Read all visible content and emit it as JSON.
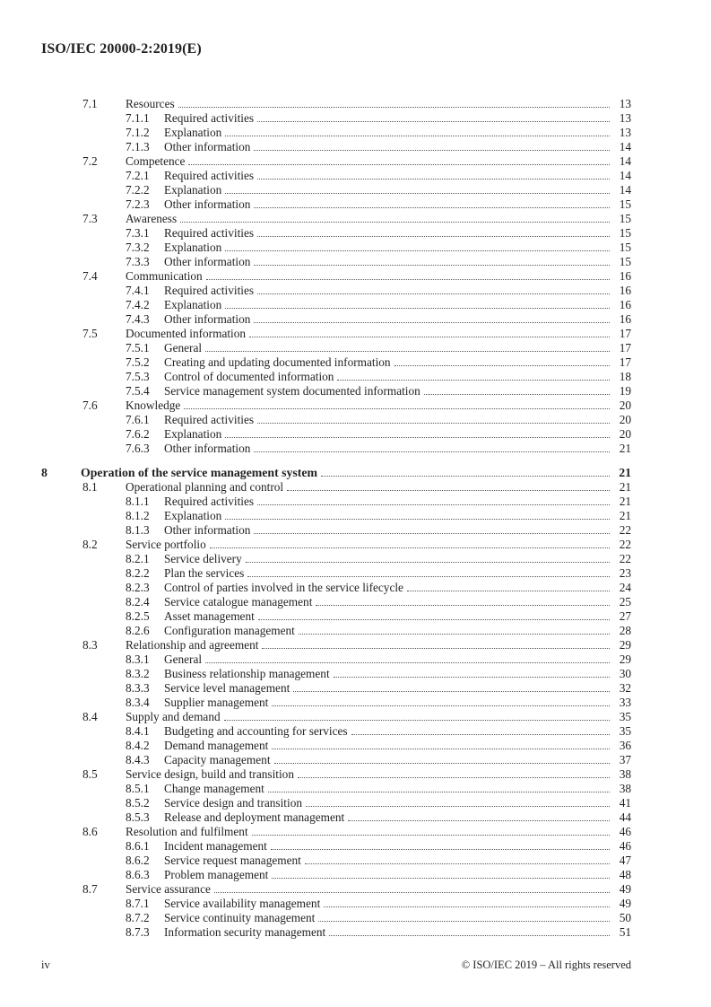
{
  "header": {
    "title": "ISO/IEC 20000-2:2019(E)"
  },
  "footer": {
    "page_label": "iv",
    "copyright": "© ISO/IEC 2019 – All rights reserved"
  },
  "toc": {
    "entries": [
      {
        "level": 2,
        "num": "7.1",
        "title": "Resources",
        "page": "13"
      },
      {
        "level": 3,
        "num": "7.1.1",
        "title": "Required activities",
        "page": "13"
      },
      {
        "level": 3,
        "num": "7.1.2",
        "title": "Explanation",
        "page": "13"
      },
      {
        "level": 3,
        "num": "7.1.3",
        "title": "Other information",
        "page": "14"
      },
      {
        "level": 2,
        "num": "7.2",
        "title": "Competence",
        "page": "14"
      },
      {
        "level": 3,
        "num": "7.2.1",
        "title": "Required activities",
        "page": "14"
      },
      {
        "level": 3,
        "num": "7.2.2",
        "title": "Explanation",
        "page": "14"
      },
      {
        "level": 3,
        "num": "7.2.3",
        "title": "Other information",
        "page": "15"
      },
      {
        "level": 2,
        "num": "7.3",
        "title": "Awareness",
        "page": "15"
      },
      {
        "level": 3,
        "num": "7.3.1",
        "title": "Required activities",
        "page": "15"
      },
      {
        "level": 3,
        "num": "7.3.2",
        "title": "Explanation",
        "page": "15"
      },
      {
        "level": 3,
        "num": "7.3.3",
        "title": "Other information",
        "page": "15"
      },
      {
        "level": 2,
        "num": "7.4",
        "title": "Communication",
        "page": "16"
      },
      {
        "level": 3,
        "num": "7.4.1",
        "title": "Required activities",
        "page": "16"
      },
      {
        "level": 3,
        "num": "7.4.2",
        "title": "Explanation",
        "page": "16"
      },
      {
        "level": 3,
        "num": "7.4.3",
        "title": "Other information",
        "page": "16"
      },
      {
        "level": 2,
        "num": "7.5",
        "title": "Documented information",
        "page": "17"
      },
      {
        "level": 3,
        "num": "7.5.1",
        "title": "General",
        "page": "17"
      },
      {
        "level": 3,
        "num": "7.5.2",
        "title": "Creating and updating documented information",
        "page": "17"
      },
      {
        "level": 3,
        "num": "7.5.3",
        "title": "Control of documented information",
        "page": "18"
      },
      {
        "level": 3,
        "num": "7.5.4",
        "title": "Service management system documented information",
        "page": "19"
      },
      {
        "level": 2,
        "num": "7.6",
        "title": "Knowledge",
        "page": "20"
      },
      {
        "level": 3,
        "num": "7.6.1",
        "title": "Required activities",
        "page": "20"
      },
      {
        "level": 3,
        "num": "7.6.2",
        "title": "Explanation",
        "page": "20"
      },
      {
        "level": 3,
        "num": "7.6.3",
        "title": "Other information",
        "page": "21"
      },
      {
        "level": 1,
        "num": "8",
        "title": "Operation of the service management system",
        "page": "21"
      },
      {
        "level": 2,
        "num": "8.1",
        "title": "Operational planning and control",
        "page": "21"
      },
      {
        "level": 3,
        "num": "8.1.1",
        "title": "Required activities",
        "page": "21"
      },
      {
        "level": 3,
        "num": "8.1.2",
        "title": "Explanation",
        "page": "21"
      },
      {
        "level": 3,
        "num": "8.1.3",
        "title": "Other information",
        "page": "22"
      },
      {
        "level": 2,
        "num": "8.2",
        "title": "Service portfolio",
        "page": "22"
      },
      {
        "level": 3,
        "num": "8.2.1",
        "title": "Service delivery",
        "page": "22"
      },
      {
        "level": 3,
        "num": "8.2.2",
        "title": "Plan the services",
        "page": "23"
      },
      {
        "level": 3,
        "num": "8.2.3",
        "title": "Control of parties involved in the service lifecycle",
        "page": "24"
      },
      {
        "level": 3,
        "num": "8.2.4",
        "title": "Service catalogue management",
        "page": "25"
      },
      {
        "level": 3,
        "num": "8.2.5",
        "title": "Asset management",
        "page": "27"
      },
      {
        "level": 3,
        "num": "8.2.6",
        "title": "Configuration management",
        "page": "28"
      },
      {
        "level": 2,
        "num": "8.3",
        "title": "Relationship and agreement",
        "page": "29"
      },
      {
        "level": 3,
        "num": "8.3.1",
        "title": "General",
        "page": "29"
      },
      {
        "level": 3,
        "num": "8.3.2",
        "title": "Business relationship management",
        "page": "30"
      },
      {
        "level": 3,
        "num": "8.3.3",
        "title": "Service level management",
        "page": "32"
      },
      {
        "level": 3,
        "num": "8.3.4",
        "title": "Supplier management",
        "page": "33"
      },
      {
        "level": 2,
        "num": "8.4",
        "title": "Supply and demand",
        "page": "35"
      },
      {
        "level": 3,
        "num": "8.4.1",
        "title": "Budgeting and accounting for services",
        "page": "35"
      },
      {
        "level": 3,
        "num": "8.4.2",
        "title": "Demand management",
        "page": "36"
      },
      {
        "level": 3,
        "num": "8.4.3",
        "title": "Capacity management",
        "page": "37"
      },
      {
        "level": 2,
        "num": "8.5",
        "title": "Service design, build and transition",
        "page": "38"
      },
      {
        "level": 3,
        "num": "8.5.1",
        "title": "Change management",
        "page": "38"
      },
      {
        "level": 3,
        "num": "8.5.2",
        "title": "Service design and transition",
        "page": "41"
      },
      {
        "level": 3,
        "num": "8.5.3",
        "title": "Release and deployment management",
        "page": "44"
      },
      {
        "level": 2,
        "num": "8.6",
        "title": "Resolution and fulfilment",
        "page": "46"
      },
      {
        "level": 3,
        "num": "8.6.1",
        "title": "Incident management",
        "page": "46"
      },
      {
        "level": 3,
        "num": "8.6.2",
        "title": "Service request management",
        "page": "47"
      },
      {
        "level": 3,
        "num": "8.6.3",
        "title": "Problem management",
        "page": "48"
      },
      {
        "level": 2,
        "num": "8.7",
        "title": "Service assurance",
        "page": "49"
      },
      {
        "level": 3,
        "num": "8.7.1",
        "title": "Service availability management",
        "page": "49"
      },
      {
        "level": 3,
        "num": "8.7.2",
        "title": "Service continuity management",
        "page": "50"
      },
      {
        "level": 3,
        "num": "8.7.3",
        "title": "Information security management",
        "page": "51"
      }
    ]
  }
}
